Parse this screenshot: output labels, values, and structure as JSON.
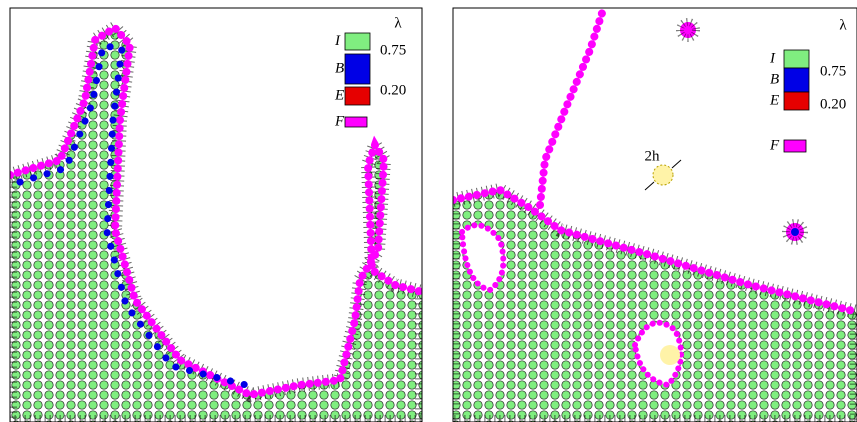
{
  "panels": [
    {
      "legend": {
        "title": "λ",
        "items": [
          {
            "label": "I",
            "color": "#80ee80"
          },
          {
            "label": "B",
            "color": "#0000e6"
          },
          {
            "label": "E",
            "color": "#e60000"
          },
          {
            "label": "F",
            "color": "#ff00ff"
          }
        ],
        "thresholds": [
          "0.75",
          "0.20"
        ]
      }
    },
    {
      "legend": {
        "title": "λ",
        "items": [
          {
            "label": "I",
            "color": "#80ee80"
          },
          {
            "label": "B",
            "color": "#0000e6"
          },
          {
            "label": "E",
            "color": "#e60000"
          },
          {
            "label": "F",
            "color": "#ff00ff"
          }
        ],
        "thresholds": [
          "0.75",
          "0.20"
        ]
      },
      "annotation": "2h"
    }
  ]
}
